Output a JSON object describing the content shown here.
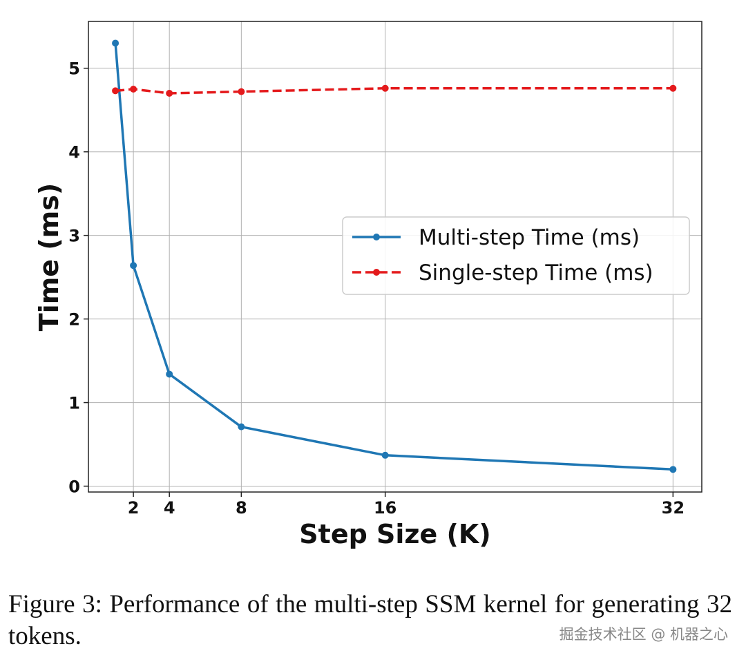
{
  "chart_data": {
    "type": "line",
    "x": [
      1,
      2,
      4,
      8,
      16,
      32
    ],
    "xticks": [
      2,
      4,
      8,
      16,
      32
    ],
    "yticks": [
      0,
      1,
      2,
      3,
      4,
      5
    ],
    "xlabel": "Step Size (K)",
    "ylabel": "Time (ms)",
    "xlim": [
      -0.5,
      33.6
    ],
    "ylim": [
      -0.07,
      5.56
    ],
    "grid": true,
    "legend_position": "center-right",
    "series": [
      {
        "name": "Multi-step Time (ms)",
        "values": [
          5.3,
          2.64,
          1.34,
          0.71,
          0.37,
          0.2
        ],
        "color": "#1f77b4",
        "style": "solid"
      },
      {
        "name": "Single-step Time (ms)",
        "values": [
          4.73,
          4.75,
          4.7,
          4.72,
          4.76,
          4.76
        ],
        "color": "#e41a1c",
        "style": "dashed"
      }
    ]
  },
  "caption": "Figure 3: Performance of the multi-step SSM kernel for generating 32 tokens.",
  "watermark": "掘金技术社区 @ 机器之心"
}
